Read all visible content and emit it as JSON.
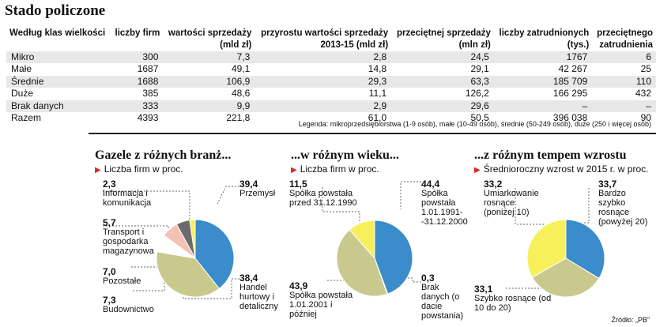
{
  "title": "Stado policzone",
  "table": {
    "headers": [
      [
        "Według klas wielkości",
        ""
      ],
      [
        "liczby firm",
        ""
      ],
      [
        "wartości sprzedaży",
        "(mld zł)"
      ],
      [
        "przyrostu wartości sprzedaży",
        "2013-15 (mld zł)"
      ],
      [
        "przeciętnej sprzedaży",
        "(mln zł)"
      ],
      [
        "liczby zatrudnionych",
        "(tys.)"
      ],
      [
        "przeciętnego",
        "zatrudnienia"
      ]
    ],
    "rows": [
      [
        "Mikro",
        "300",
        "7,3",
        "2,8",
        "24,5",
        "1767",
        "6"
      ],
      [
        "Małe",
        "1687",
        "49,1",
        "14,8",
        "29,1",
        "42 267",
        "25"
      ],
      [
        "Średnie",
        "1688",
        "106,9",
        "29,3",
        "63,3",
        "185 709",
        "110"
      ],
      [
        "Duże",
        "385",
        "48,6",
        "11,1",
        "126,2",
        "166 295",
        "432"
      ],
      [
        "Brak danych",
        "333",
        "9,9",
        "2,9",
        "29,6",
        "–",
        "–"
      ],
      [
        "Razem",
        "4393",
        "221,8",
        "61,0",
        "50,5",
        "396 038",
        "90"
      ]
    ],
    "legend": "Legenda: mikroprzedsiębiorstwa (1-9 osób), małe (10-49 osób), średnie (50-249 osób), duże (250 i więcej osób)"
  },
  "sections": [
    {
      "heading": "Gazele z różnych branż...",
      "sub": "Liczba firm w proc."
    },
    {
      "heading": "...w różnym wieku...",
      "sub": "Liczba firm w proc."
    },
    {
      "heading": "...z różnym tempem wzrostu",
      "sub": "Średnioroczny wzrost w 2015 r. w proc."
    }
  ],
  "source": "Źródło: „PB”",
  "colors": {
    "blue": "#3a8ccb",
    "olive": "#c9c98e",
    "yellow": "#f7f05a",
    "pink": "#f2c2b4",
    "gray": "#6b6b6b"
  },
  "chart_data": [
    {
      "type": "pie",
      "title": "Gazele z różnych branż...",
      "subtitle": "Liczba firm w proc.",
      "slices": [
        {
          "label": "Przemysł",
          "value": 39.4,
          "display": "39,4",
          "color": "#3a8ccb"
        },
        {
          "label": "Handel hurtowy i detaliczny",
          "value": 38.4,
          "display": "38,4",
          "color": "#c9c98e"
        },
        {
          "label": "Budownictwo",
          "value": 7.3,
          "display": "7,3",
          "color": "#ffffff"
        },
        {
          "label": "Pozostałe",
          "value": 7.0,
          "display": "7,0",
          "color": "#f2c2b4"
        },
        {
          "label": "Transport i gospodarka magazynowa",
          "value": 5.7,
          "display": "5,7",
          "color": "#6b6b6b"
        },
        {
          "label": "Informacja i komunikacja",
          "value": 2.3,
          "display": "2,3",
          "color": "#f7f05a"
        }
      ]
    },
    {
      "type": "pie",
      "title": "...w różnym wieku...",
      "subtitle": "Liczba firm w proc.",
      "slices": [
        {
          "label": "Spółka powstała 1.01.1991- -31.12.2000",
          "value": 44.4,
          "display": "44,4",
          "color": "#3a8ccb"
        },
        {
          "label": "Brak danych (o dacie powstania)",
          "value": 0.3,
          "display": "0,3",
          "color": "#ffffff"
        },
        {
          "label": "Spółka powstała 1.01.2001 i później",
          "value": 43.9,
          "display": "43,9",
          "color": "#c9c98e"
        },
        {
          "label": "Spółka powstała przed 31.12.1990",
          "value": 11.5,
          "display": "11,5",
          "color": "#f7f05a"
        }
      ]
    },
    {
      "type": "pie",
      "title": "...z różnym tempem wzrostu",
      "subtitle": "Średnioroczny wzrost w 2015 r. w proc.",
      "slices": [
        {
          "label": "Bardzo szybko rosnące (powyżej 20)",
          "value": 33.7,
          "display": "33,7",
          "color": "#3a8ccb"
        },
        {
          "label": "Szybko rosnące (od 10 do 20)",
          "value": 33.1,
          "display": "33,1",
          "color": "#c9c98e"
        },
        {
          "label": "Umiarkowanie rosnące (poniżej 10)",
          "value": 33.2,
          "display": "33,2",
          "color": "#f7f05a"
        }
      ]
    }
  ]
}
